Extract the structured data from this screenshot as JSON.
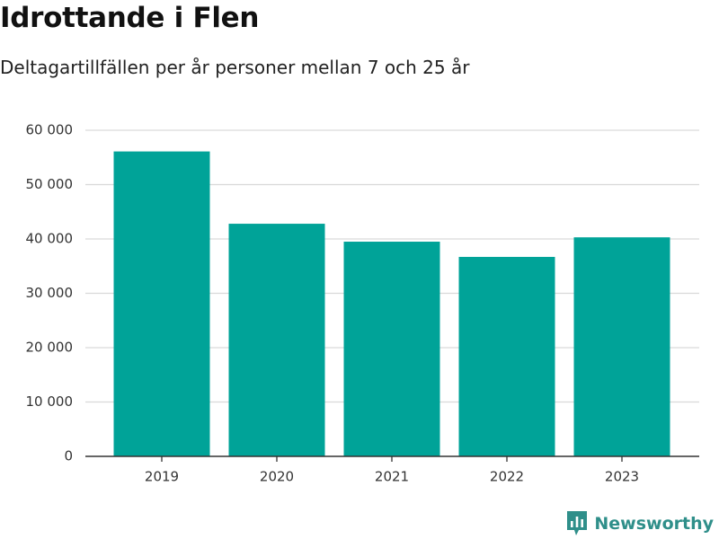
{
  "title": "Idrottande i Flen",
  "subtitle": "Deltagartillfällen per år personer mellan 7 och 25 år",
  "brand": {
    "name": "Newsworthy",
    "icon": "newsworthy-logo-icon",
    "color": "#2f8f8a"
  },
  "colors": {
    "bar": "#00a398",
    "grid": "#d9d9d9",
    "axis": "#333333"
  },
  "chart_data": {
    "type": "bar",
    "title": "Idrottande i Flen",
    "subtitle": "Deltagartillfällen per år personer mellan 7 och 25 år",
    "xlabel": "",
    "ylabel": "",
    "categories": [
      "2019",
      "2020",
      "2021",
      "2022",
      "2023"
    ],
    "values": [
      56100,
      42800,
      39500,
      36700,
      40300
    ],
    "ylim": [
      0,
      60000
    ],
    "yticks": [
      0,
      10000,
      20000,
      30000,
      40000,
      50000,
      60000
    ],
    "ytick_labels": [
      "0",
      "10 000",
      "20 000",
      "30 000",
      "40 000",
      "50 000",
      "60 000"
    ],
    "grid": true,
    "legend": "none"
  }
}
